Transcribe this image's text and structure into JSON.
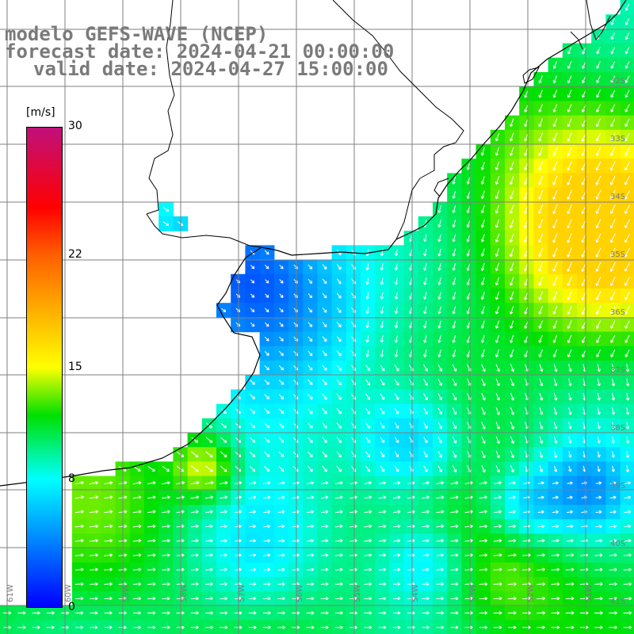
{
  "title_lines": {
    "model": "modelo GEFS-WAVE (NCEP)",
    "forecast": "forecast date: 2024-04-21 00:00:00",
    "valid": "valid date: 2024-04-27 15:00:00"
  },
  "colorbar": {
    "unit": "[m/s]",
    "ticks": [
      "0",
      "8",
      "15",
      "22",
      "30"
    ],
    "tick_values": [
      0,
      8,
      15,
      22,
      30
    ],
    "range": [
      0,
      30
    ],
    "stops": [
      {
        "v": 0,
        "color": "#0000ff"
      },
      {
        "v": 5,
        "color": "#00a0ff"
      },
      {
        "v": 8,
        "color": "#00ffff"
      },
      {
        "v": 12,
        "color": "#00e000"
      },
      {
        "v": 15,
        "color": "#ffff00"
      },
      {
        "v": 22,
        "color": "#ff6000"
      },
      {
        "v": 25,
        "color": "#ff0000"
      },
      {
        "v": 30,
        "color": "#c0107a"
      }
    ]
  },
  "lat_labels": [
    "32S",
    "33S",
    "34S",
    "35S",
    "36S",
    "37S",
    "38S",
    "39S",
    "40S",
    "41S"
  ],
  "lon_labels": [
    "61W",
    "60W",
    "59W",
    "58W",
    "57W",
    "56W",
    "55W",
    "54W",
    "53W",
    "52W",
    "51W"
  ],
  "colors": {
    "land": "#ffffff",
    "grid": "#7f7f7f",
    "coast": "#000000",
    "arrow": "#ffffff"
  }
}
